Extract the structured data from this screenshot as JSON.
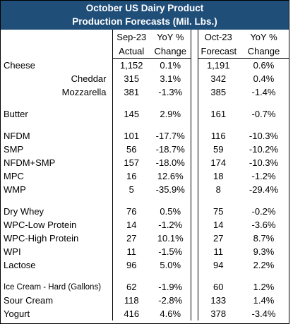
{
  "header": {
    "title": "October US Dairy Product",
    "subtitle": "Production Forecasts (Mil. Lbs.)"
  },
  "table": {
    "columns": [
      [
        "Sep-23",
        "Actual"
      ],
      [
        "YoY %",
        "Change"
      ],
      [
        "Oct-23",
        "Forecast"
      ],
      [
        "YoY %",
        "Change"
      ]
    ],
    "groups": [
      [
        {
          "label": "Cheese",
          "values": [
            "1,152",
            "0.1%",
            "1,191",
            "0.6%"
          ]
        },
        {
          "label": "Cheddar",
          "values": [
            "315",
            "3.1%",
            "342",
            "0.4%"
          ],
          "indent": true
        },
        {
          "label": "Mozzarella",
          "values": [
            "381",
            "-1.3%",
            "385",
            "-1.4%"
          ],
          "indent": true
        }
      ],
      [
        {
          "label": "Butter",
          "values": [
            "145",
            "2.9%",
            "161",
            "-0.7%"
          ]
        }
      ],
      [
        {
          "label": "NFDM",
          "values": [
            "101",
            "-17.7%",
            "116",
            "-10.3%"
          ]
        },
        {
          "label": "SMP",
          "values": [
            "56",
            "-18.7%",
            "59",
            "-10.2%"
          ]
        },
        {
          "label": "NFDM+SMP",
          "values": [
            "157",
            "-18.0%",
            "174",
            "-10.3%"
          ]
        },
        {
          "label": "MPC",
          "values": [
            "16",
            "12.6%",
            "18",
            "-1.2%"
          ]
        },
        {
          "label": "WMP",
          "values": [
            "5",
            "-35.9%",
            "8",
            "-29.4%"
          ]
        }
      ],
      [
        {
          "label": "Dry Whey",
          "values": [
            "76",
            "0.5%",
            "75",
            "-0.2%"
          ]
        },
        {
          "label": "WPC-Low Protein",
          "values": [
            "14",
            "-1.2%",
            "14",
            "-3.6%"
          ]
        },
        {
          "label": "WPC-High Protein",
          "values": [
            "27",
            "10.1%",
            "27",
            "8.7%"
          ]
        },
        {
          "label": "WPI",
          "values": [
            "11",
            "-1.5%",
            "11",
            "9.3%"
          ]
        },
        {
          "label": "Lactose",
          "values": [
            "96",
            "5.0%",
            "94",
            "2.2%"
          ]
        }
      ],
      [
        {
          "label": "Ice Cream - Hard (Gallons)",
          "values": [
            "62",
            "-1.9%",
            "60",
            "1.2%"
          ],
          "small": true
        },
        {
          "label": "Sour Cream",
          "values": [
            "118",
            "-2.8%",
            "133",
            "1.4%"
          ]
        },
        {
          "label": "Yogurt",
          "values": [
            "416",
            "4.6%",
            "378",
            "-3.4%"
          ]
        }
      ]
    ]
  }
}
